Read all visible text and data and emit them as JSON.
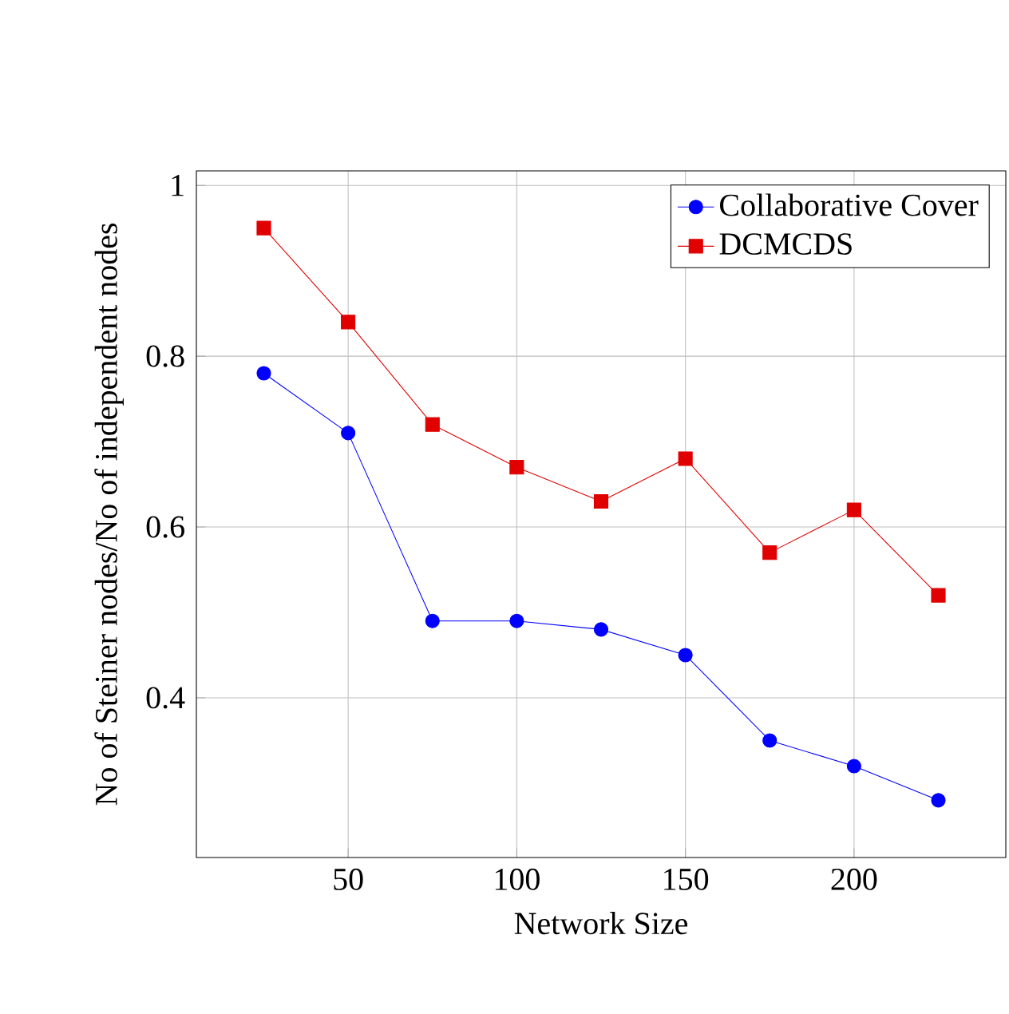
{
  "chart_data": {
    "type": "line",
    "xlabel": "Network Size",
    "ylabel": "No of Steiner nodes/No of independent nodes",
    "x": [
      25,
      50,
      75,
      100,
      125,
      150,
      175,
      200,
      225
    ],
    "series": [
      {
        "name": "Collaborative Cover",
        "color": "#0000ff",
        "marker": "circle",
        "values": [
          0.78,
          0.71,
          0.49,
          0.49,
          0.48,
          0.45,
          0.35,
          0.32,
          0.28
        ]
      },
      {
        "name": "DCMCDS",
        "color": "#e00000",
        "marker": "square",
        "values": [
          0.95,
          0.84,
          0.72,
          0.67,
          0.63,
          0.68,
          0.57,
          0.62,
          0.52
        ]
      }
    ],
    "xlim": [
      5,
      245
    ],
    "ylim": [
      0.213,
      1.017
    ],
    "xticks": [
      50,
      100,
      150,
      200
    ],
    "yticks": [
      0.4,
      0.6,
      0.8,
      1
    ],
    "grid": true,
    "legend": "top right",
    "line_style": "solid"
  }
}
